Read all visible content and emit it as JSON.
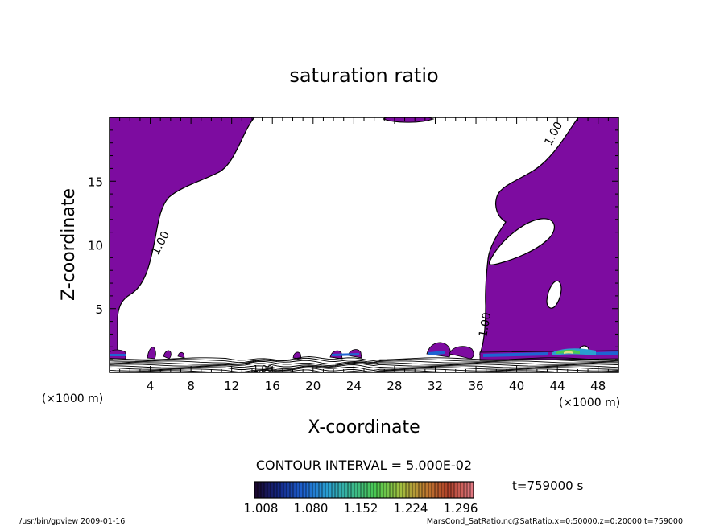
{
  "chart_data": {
    "type": "heatmap",
    "title": "saturation ratio",
    "xlabel": "X-coordinate",
    "ylabel": "Z-coordinate",
    "x_unit": "(×1000 m)",
    "z_unit": "(×1000 m)",
    "xlim": [
      0,
      50
    ],
    "ylim": [
      0,
      20
    ],
    "x_ticks": [
      4,
      8,
      12,
      16,
      20,
      24,
      28,
      32,
      36,
      40,
      44,
      48
    ],
    "y_ticks": [
      5,
      10,
      15
    ],
    "contour_interval": "CONTOUR INTERVAL = 5.000E-02",
    "contour_labels": [
      "1.00",
      "1.00",
      "1.00",
      "1.00"
    ],
    "colorbar_ticks": [
      "1.008",
      "1.080",
      "1.152",
      "1.224",
      "1.296"
    ],
    "colorbar_colors": [
      "#1a0830",
      "#142a8a",
      "#1e64d2",
      "#2aa0d0",
      "#3ab890",
      "#4cc850",
      "#a0c040",
      "#c08030",
      "#b04028",
      "#e07880"
    ],
    "fill_color": "#7d0ca0",
    "time_label": "t=759000 s",
    "footer_left": "/usr/bin/gpview   2009-01-16",
    "footer_right": "MarsCond_SatRatio.nc@SatRatio,x=0:50000,z=0:20000,t=759000"
  }
}
